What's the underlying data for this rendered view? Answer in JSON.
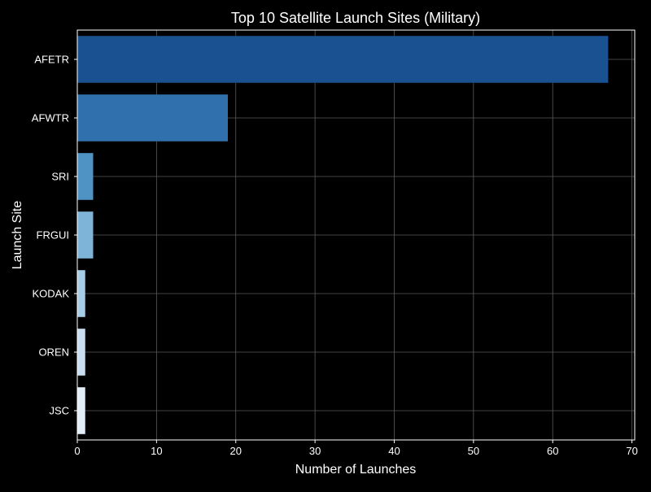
{
  "chart_data": {
    "type": "bar",
    "orientation": "horizontal",
    "title": "Top 10 Satellite Launch Sites (Military)",
    "xlabel": "Number of Launches",
    "ylabel": "Launch Site",
    "categories": [
      "AFETR",
      "AFWTR",
      "SRI",
      "FRGUI",
      "KODAK",
      "OREN",
      "JSC"
    ],
    "values": [
      67,
      19,
      2,
      2,
      1,
      1,
      1
    ],
    "xlim": [
      0,
      70.35
    ],
    "xticks": [
      0,
      10,
      20,
      30,
      40,
      50,
      60,
      70
    ],
    "grid": true,
    "legend": "none",
    "bar_colors": [
      "#1a5190",
      "#2f70ad",
      "#4f93c4",
      "#7db4d8",
      "#a7cce6",
      "#c9def1",
      "#e2edf8"
    ],
    "colors": {
      "background": "#000000",
      "axis": "#ffffff",
      "text": "#ffffff",
      "grid": "#5a5a5a"
    }
  }
}
